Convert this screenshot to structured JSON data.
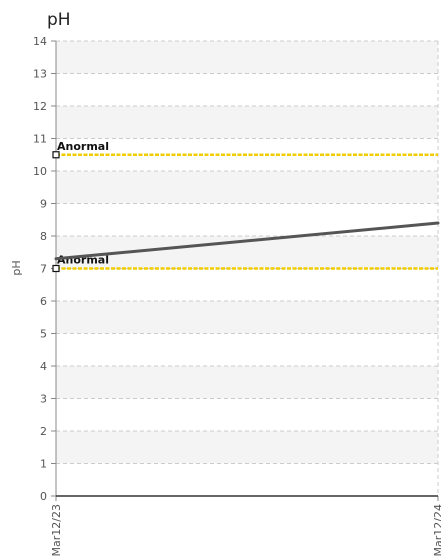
{
  "chart_data": {
    "type": "line",
    "title": "pH",
    "xlabel": "",
    "ylabel": "pH",
    "ylim": [
      0,
      14
    ],
    "yticks": [
      0,
      1,
      2,
      3,
      4,
      5,
      6,
      7,
      8,
      9,
      10,
      11,
      12,
      13,
      14
    ],
    "categories": [
      "Mar12/23",
      "Mar12/24"
    ],
    "grid": true,
    "series": [
      {
        "values": [
          7.3,
          8.4
        ],
        "color": "#555555"
      }
    ],
    "reference_lines": [
      {
        "label": "Anormal",
        "value": 10.5,
        "color": "#f2cc00"
      },
      {
        "label": "Anormal",
        "value": 7.0,
        "color": "#f2cc00"
      }
    ]
  }
}
